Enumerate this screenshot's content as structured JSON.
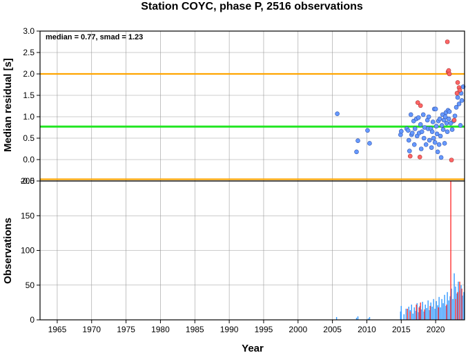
{
  "chart_data": {
    "title": "Station COYC, phase P, 2516 observations",
    "xlabel": "Year",
    "xlim": [
      1962.5,
      2024.2
    ],
    "xticks": [
      1965,
      1970,
      1975,
      1980,
      1985,
      1990,
      1995,
      2000,
      2005,
      2010,
      2015,
      2020
    ],
    "top_panel": {
      "type": "scatter",
      "ylabel": "Median residual [s]",
      "ylim": [
        -0.5,
        3.0
      ],
      "yticks": [
        "-0.5",
        "0.0",
        "0.5",
        "1.0",
        "1.5",
        "2.0",
        "2.5",
        "3.0"
      ],
      "stats_text": "median = 0.77, smad = 1.23",
      "median_line": 0.77,
      "limit_lines": [
        2.0,
        -0.46
      ],
      "colors": {
        "median": "#22e622",
        "limits": "#ffa500",
        "blue": "#6699ff",
        "red": "#ff6666"
      },
      "blue_points": [
        [
          2005.7,
          1.07
        ],
        [
          2008.5,
          0.18
        ],
        [
          2008.7,
          0.44
        ],
        [
          2010.1,
          0.68
        ],
        [
          2010.4,
          0.38
        ],
        [
          2014.9,
          0.58
        ],
        [
          2015.0,
          0.66
        ],
        [
          2015.8,
          0.72
        ],
        [
          2016.0,
          0.68
        ],
        [
          2016.1,
          0.45
        ],
        [
          2016.2,
          0.2
        ],
        [
          2016.4,
          1.05
        ],
        [
          2016.5,
          0.58
        ],
        [
          2016.6,
          0.62
        ],
        [
          2016.8,
          0.9
        ],
        [
          2016.9,
          0.35
        ],
        [
          2017.0,
          0.72
        ],
        [
          2017.2,
          0.95
        ],
        [
          2017.3,
          0.55
        ],
        [
          2017.5,
          0.98
        ],
        [
          2017.6,
          0.62
        ],
        [
          2017.8,
          0.82
        ],
        [
          2017.9,
          0.25
        ],
        [
          2018.0,
          0.65
        ],
        [
          2018.2,
          1.05
        ],
        [
          2018.3,
          0.5
        ],
        [
          2018.4,
          0.75
        ],
        [
          2018.6,
          0.35
        ],
        [
          2018.8,
          0.92
        ],
        [
          2018.9,
          0.72
        ],
        [
          2019.0,
          1.0
        ],
        [
          2019.1,
          0.45
        ],
        [
          2019.3,
          0.72
        ],
        [
          2019.4,
          0.28
        ],
        [
          2019.5,
          0.65
        ],
        [
          2019.6,
          0.88
        ],
        [
          2019.7,
          0.5
        ],
        [
          2019.8,
          1.18
        ],
        [
          2019.9,
          0.4
        ],
        [
          2020.0,
          1.18
        ],
        [
          2020.1,
          0.78
        ],
        [
          2020.2,
          0.6
        ],
        [
          2020.3,
          0.18
        ],
        [
          2020.4,
          0.9
        ],
        [
          2020.5,
          0.35
        ],
        [
          2020.6,
          0.95
        ],
        [
          2020.7,
          0.55
        ],
        [
          2020.8,
          0.05
        ],
        [
          2020.9,
          0.8
        ],
        [
          2021.0,
          1.05
        ],
        [
          2021.1,
          0.7
        ],
        [
          2021.2,
          0.92
        ],
        [
          2021.3,
          0.38
        ],
        [
          2021.4,
          1.0
        ],
        [
          2021.5,
          1.1
        ],
        [
          2021.6,
          0.85
        ],
        [
          2021.7,
          0.65
        ],
        [
          2021.8,
          1.15
        ],
        [
          2021.9,
          0.95
        ],
        [
          2022.0,
          1.12
        ],
        [
          2022.2,
          0.85
        ],
        [
          2022.4,
          0.7
        ],
        [
          2022.6,
          0.9
        ],
        [
          2022.8,
          1.02
        ],
        [
          2023.0,
          1.22
        ],
        [
          2023.2,
          1.45
        ],
        [
          2023.4,
          1.3
        ],
        [
          2023.6,
          0.8
        ],
        [
          2023.7,
          1.55
        ],
        [
          2023.8,
          1.38
        ],
        [
          2024.0,
          1.7
        ]
      ],
      "red_points": [
        [
          2016.3,
          0.08
        ],
        [
          2017.4,
          1.33
        ],
        [
          2017.7,
          0.06
        ],
        [
          2017.8,
          1.26
        ],
        [
          2021.7,
          2.75
        ],
        [
          2021.8,
          2.05
        ],
        [
          2021.9,
          2.08
        ],
        [
          2022.0,
          2.0
        ],
        [
          2022.3,
          -0.01
        ],
        [
          2022.7,
          0.92
        ],
        [
          2023.1,
          1.55
        ],
        [
          2023.2,
          1.8
        ],
        [
          2023.4,
          1.68
        ],
        [
          2023.5,
          1.62
        ]
      ]
    },
    "bottom_panel": {
      "type": "bar",
      "ylabel": "Observations",
      "ylim": [
        0,
        200
      ],
      "yticks": [
        "0",
        "50",
        "100",
        "150",
        "200"
      ],
      "colors": {
        "blue": "#3399ff",
        "red": "#ff3333"
      },
      "blue_bars": [
        [
          2005.6,
          4
        ],
        [
          2008.5,
          3
        ],
        [
          2008.7,
          5
        ],
        [
          2010.2,
          2
        ],
        [
          2010.4,
          4
        ],
        [
          2014.9,
          12
        ],
        [
          2015.0,
          20
        ],
        [
          2015.4,
          8
        ],
        [
          2015.7,
          16
        ],
        [
          2015.9,
          10
        ],
        [
          2016.1,
          19
        ],
        [
          2016.3,
          14
        ],
        [
          2016.5,
          22
        ],
        [
          2016.7,
          9
        ],
        [
          2016.9,
          18
        ],
        [
          2017.1,
          13
        ],
        [
          2017.3,
          24
        ],
        [
          2017.5,
          11
        ],
        [
          2017.7,
          20
        ],
        [
          2017.9,
          15
        ],
        [
          2018.1,
          26
        ],
        [
          2018.3,
          12
        ],
        [
          2018.5,
          22
        ],
        [
          2018.7,
          17
        ],
        [
          2018.9,
          28
        ],
        [
          2019.1,
          14
        ],
        [
          2019.3,
          25
        ],
        [
          2019.5,
          19
        ],
        [
          2019.7,
          30
        ],
        [
          2019.9,
          16
        ],
        [
          2020.1,
          27
        ],
        [
          2020.3,
          21
        ],
        [
          2020.5,
          33
        ],
        [
          2020.7,
          18
        ],
        [
          2020.9,
          30
        ],
        [
          2021.1,
          24
        ],
        [
          2021.3,
          36
        ],
        [
          2021.5,
          20
        ],
        [
          2021.7,
          40
        ],
        [
          2021.9,
          28
        ],
        [
          2022.1,
          34
        ],
        [
          2022.3,
          45
        ],
        [
          2022.5,
          30
        ],
        [
          2022.7,
          67
        ],
        [
          2022.9,
          48
        ],
        [
          2023.1,
          38
        ],
        [
          2023.3,
          55
        ],
        [
          2023.5,
          42
        ],
        [
          2023.7,
          50
        ],
        [
          2023.9,
          35
        ],
        [
          2024.1,
          40
        ]
      ],
      "red_bars": [
        [
          2015.9,
          16
        ],
        [
          2016.3,
          12
        ],
        [
          2017.2,
          22
        ],
        [
          2017.6,
          18
        ],
        [
          2017.8,
          25
        ],
        [
          2018.4,
          15
        ],
        [
          2019.2,
          20
        ],
        [
          2020.4,
          18
        ],
        [
          2021.6,
          22
        ],
        [
          2022.2,
          200
        ],
        [
          2022.9,
          30
        ],
        [
          2023.2,
          40
        ],
        [
          2023.5,
          55
        ],
        [
          2023.8,
          45
        ]
      ]
    }
  }
}
